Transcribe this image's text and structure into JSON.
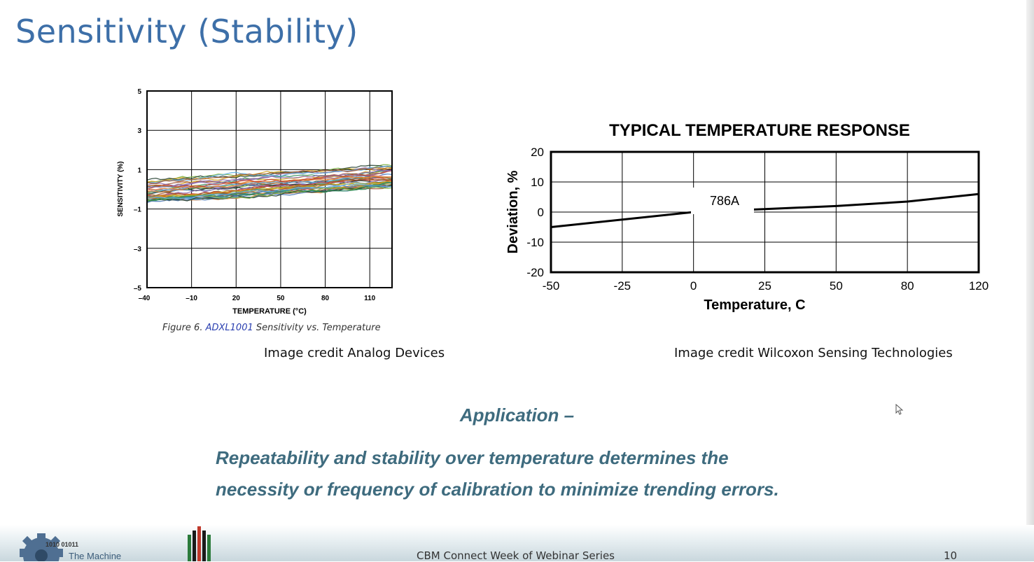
{
  "slide": {
    "title": "Sensitivity (Stability)",
    "caption_part1": "Figure 6. ",
    "caption_link": "ADXL1001",
    "caption_part2": " Sensitivity vs. Temperature",
    "credit_left": "Image credit Analog Devices",
    "credit_right": "Image credit Wilcoxon Sensing Technologies",
    "application_heading": "Application –",
    "application_line1": "Repeatability and stability over temperature determines the",
    "application_line2": "necessity or frequency of calibration to minimize trending errors."
  },
  "footer": {
    "logo_binary": "1010 01011",
    "logo_label": "The Machine",
    "series": "CBM Connect Week of Webinar Series",
    "page_number": "10"
  },
  "chart_data": [
    {
      "type": "line",
      "title": "",
      "xlabel": "TEMPERATURE (°C)",
      "ylabel": "SENSITIVITY (%)",
      "x_ticks": [
        "–40",
        "–10",
        "20",
        "50",
        "80",
        "110"
      ],
      "y_ticks": [
        "–5",
        "–3",
        "–1",
        "1",
        "3",
        "5"
      ],
      "xlim": [
        -40,
        125
      ],
      "ylim": [
        -5,
        5
      ],
      "grid": true,
      "series_note_count": 40,
      "series_trend": {
        "x": [
          -40,
          125
        ],
        "y": [
          -0.1,
          0.7
        ]
      },
      "series_spread": 0.55,
      "colors": [
        "#1f3b2a",
        "#4a7ab8",
        "#e07b2a",
        "#7cb342",
        "#c0392b",
        "#d4a017",
        "#8e6bb0",
        "#2e8b57",
        "#5dade2",
        "#a0522d"
      ]
    },
    {
      "type": "line",
      "title": "TYPICAL TEMPERATURE RESPONSE",
      "xlabel": "Temperature, C",
      "ylabel": "Deviation, %",
      "x_ticks": [
        "-50",
        "-25",
        "0",
        "25",
        "50",
        "80",
        "120"
      ],
      "y_ticks": [
        "20",
        "10",
        "0",
        "-10",
        "-20"
      ],
      "ylim": [
        -20,
        20
      ],
      "grid": true,
      "series": [
        {
          "name": "786A",
          "x": [
            -50,
            0,
            25,
            50,
            80,
            120
          ],
          "y": [
            -5,
            0,
            1,
            2,
            3.5,
            6
          ]
        }
      ]
    }
  ]
}
